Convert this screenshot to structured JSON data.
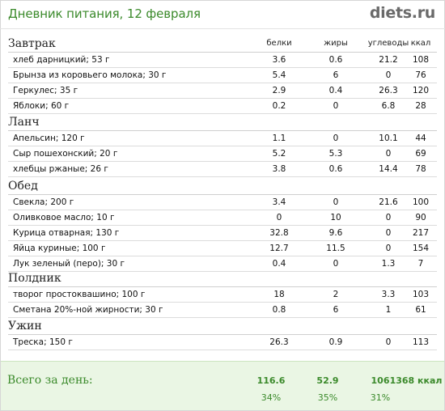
{
  "header": {
    "title": "Дневник питания, 12 февраля",
    "logo_main": "diets",
    "logo_dot": ".",
    "logo_tld": "ru"
  },
  "columns": {
    "protein": "белки",
    "fat": "жиры",
    "carbs": "углеводы",
    "kcal": "ккал"
  },
  "meals": [
    {
      "title": "Завтрак",
      "items": [
        {
          "name": "хлеб дарницкий; 53 г",
          "protein": "3.6",
          "fat": "0.6",
          "carbs": "21.2",
          "kcal": "108"
        },
        {
          "name": "Брынза из коровьего молока; 30 г",
          "protein": "5.4",
          "fat": "6",
          "carbs": "0",
          "kcal": "76"
        },
        {
          "name": "Геркулес; 35 г",
          "protein": "2.9",
          "fat": "0.4",
          "carbs": "26.3",
          "kcal": "120"
        },
        {
          "name": "Яблоки; 60 г",
          "protein": "0.2",
          "fat": "0",
          "carbs": "6.8",
          "kcal": "28"
        }
      ]
    },
    {
      "title": "Ланч",
      "items": [
        {
          "name": "Апельсин; 120 г",
          "protein": "1.1",
          "fat": "0",
          "carbs": "10.1",
          "kcal": "44"
        },
        {
          "name": "Сыр пошехонский; 20 г",
          "protein": "5.2",
          "fat": "5.3",
          "carbs": "0",
          "kcal": "69"
        },
        {
          "name": "хлебцы ржаные; 26 г",
          "protein": "3.8",
          "fat": "0.6",
          "carbs": "14.4",
          "kcal": "78"
        }
      ]
    },
    {
      "title": "Обед",
      "items": [
        {
          "name": "Свекла; 200 г",
          "protein": "3.4",
          "fat": "0",
          "carbs": "21.6",
          "kcal": "100"
        },
        {
          "name": "Оливковое масло; 10 г",
          "protein": "0",
          "fat": "10",
          "carbs": "0",
          "kcal": "90"
        },
        {
          "name": "Курица отварная; 130 г",
          "protein": "32.8",
          "fat": "9.6",
          "carbs": "0",
          "kcal": "217"
        },
        {
          "name": "Яйца куриные; 100 г",
          "protein": "12.7",
          "fat": "11.5",
          "carbs": "0",
          "kcal": "154"
        },
        {
          "name": "Лук зеленый (перо); 30 г",
          "protein": "0.4",
          "fat": "0",
          "carbs": "1.3",
          "kcal": "7"
        }
      ]
    },
    {
      "title": "Полдник",
      "items": [
        {
          "name": "творог простоквашино; 100 г",
          "protein": "18",
          "fat": "2",
          "carbs": "3.3",
          "kcal": "103"
        },
        {
          "name": "Сметана 20%-ной жирности; 30 г",
          "protein": "0.8",
          "fat": "6",
          "carbs": "1",
          "kcal": "61"
        }
      ]
    },
    {
      "title": "Ужин",
      "items": [
        {
          "name": "Треска; 150 г",
          "protein": "26.3",
          "fat": "0.9",
          "carbs": "0",
          "kcal": "113"
        }
      ]
    }
  ],
  "totals": {
    "label": "Всего за день:",
    "protein": "116.6",
    "fat": "52.9",
    "carbs": "106",
    "kcal": "1368 ккал",
    "protein_pct": "34%",
    "fat_pct": "35%",
    "carbs_pct": "31%"
  },
  "colors": {
    "accent": "#3b8a2b",
    "footer_bg": "#eaf6e4",
    "row_line": "#dcdcdc"
  }
}
